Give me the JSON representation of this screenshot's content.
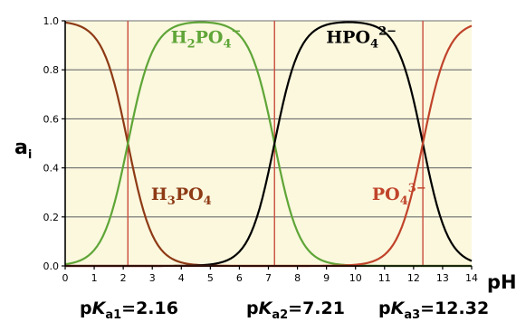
{
  "chart_data": {
    "type": "line",
    "title": "",
    "xlabel": "pH",
    "ylabel_main": "a",
    "ylabel_sub": "i",
    "xlim": [
      0,
      14
    ],
    "ylim": [
      0,
      1.0
    ],
    "x_ticks": [
      "0",
      "1",
      "2",
      "3",
      "4",
      "5",
      "6",
      "7",
      "8",
      "9",
      "10",
      "11",
      "12",
      "13",
      "14"
    ],
    "y_ticks": [
      "0.0",
      "0.2",
      "0.4",
      "0.6",
      "0.8",
      "1.0"
    ],
    "grid": true,
    "plot_background": "#fbf8de",
    "x_range_step": 0.1,
    "pKa": [
      2.16,
      7.21,
      12.32
    ],
    "series": [
      {
        "label_parts": [
          {
            "t": "H"
          },
          {
            "t": "3",
            "sub": true
          },
          {
            "t": "PO"
          },
          {
            "t": "4",
            "sub": true
          }
        ],
        "color": "#8e3a15",
        "label_at": [
          4.0,
          0.27
        ],
        "note": "alpha0 = [H3PO4] fraction"
      },
      {
        "label_parts": [
          {
            "t": "H"
          },
          {
            "t": "2",
            "sub": true
          },
          {
            "t": "PO"
          },
          {
            "t": "4",
            "sub": true
          },
          {
            "t": "−",
            "sup": true
          }
        ],
        "color": "#5fa537",
        "label_at": [
          4.85,
          0.91
        ],
        "note": "alpha1"
      },
      {
        "label_parts": [
          {
            "t": "HPO"
          },
          {
            "t": "4",
            "sub": true
          },
          {
            "t": "2−",
            "sup": true
          }
        ],
        "color": "#000000",
        "label_at": [
          10.2,
          0.91
        ],
        "note": "alpha2"
      },
      {
        "label_parts": [
          {
            "t": "PO"
          },
          {
            "t": "4",
            "sub": true
          },
          {
            "t": "3−",
            "sup": true
          }
        ],
        "color": "#c0432a",
        "label_at": [
          11.5,
          0.27
        ],
        "note": "alpha3"
      }
    ],
    "pka_line_color": "#c94c3c",
    "pka_labels": [
      {
        "prefix": "p",
        "k": "K",
        "sub": "a1",
        "value": "=2.16"
      },
      {
        "prefix": "p",
        "k": "K",
        "sub": "a2",
        "value": "=7.21"
      },
      {
        "prefix": "p",
        "k": "K",
        "sub": "a3",
        "value": "=12.32"
      }
    ]
  }
}
